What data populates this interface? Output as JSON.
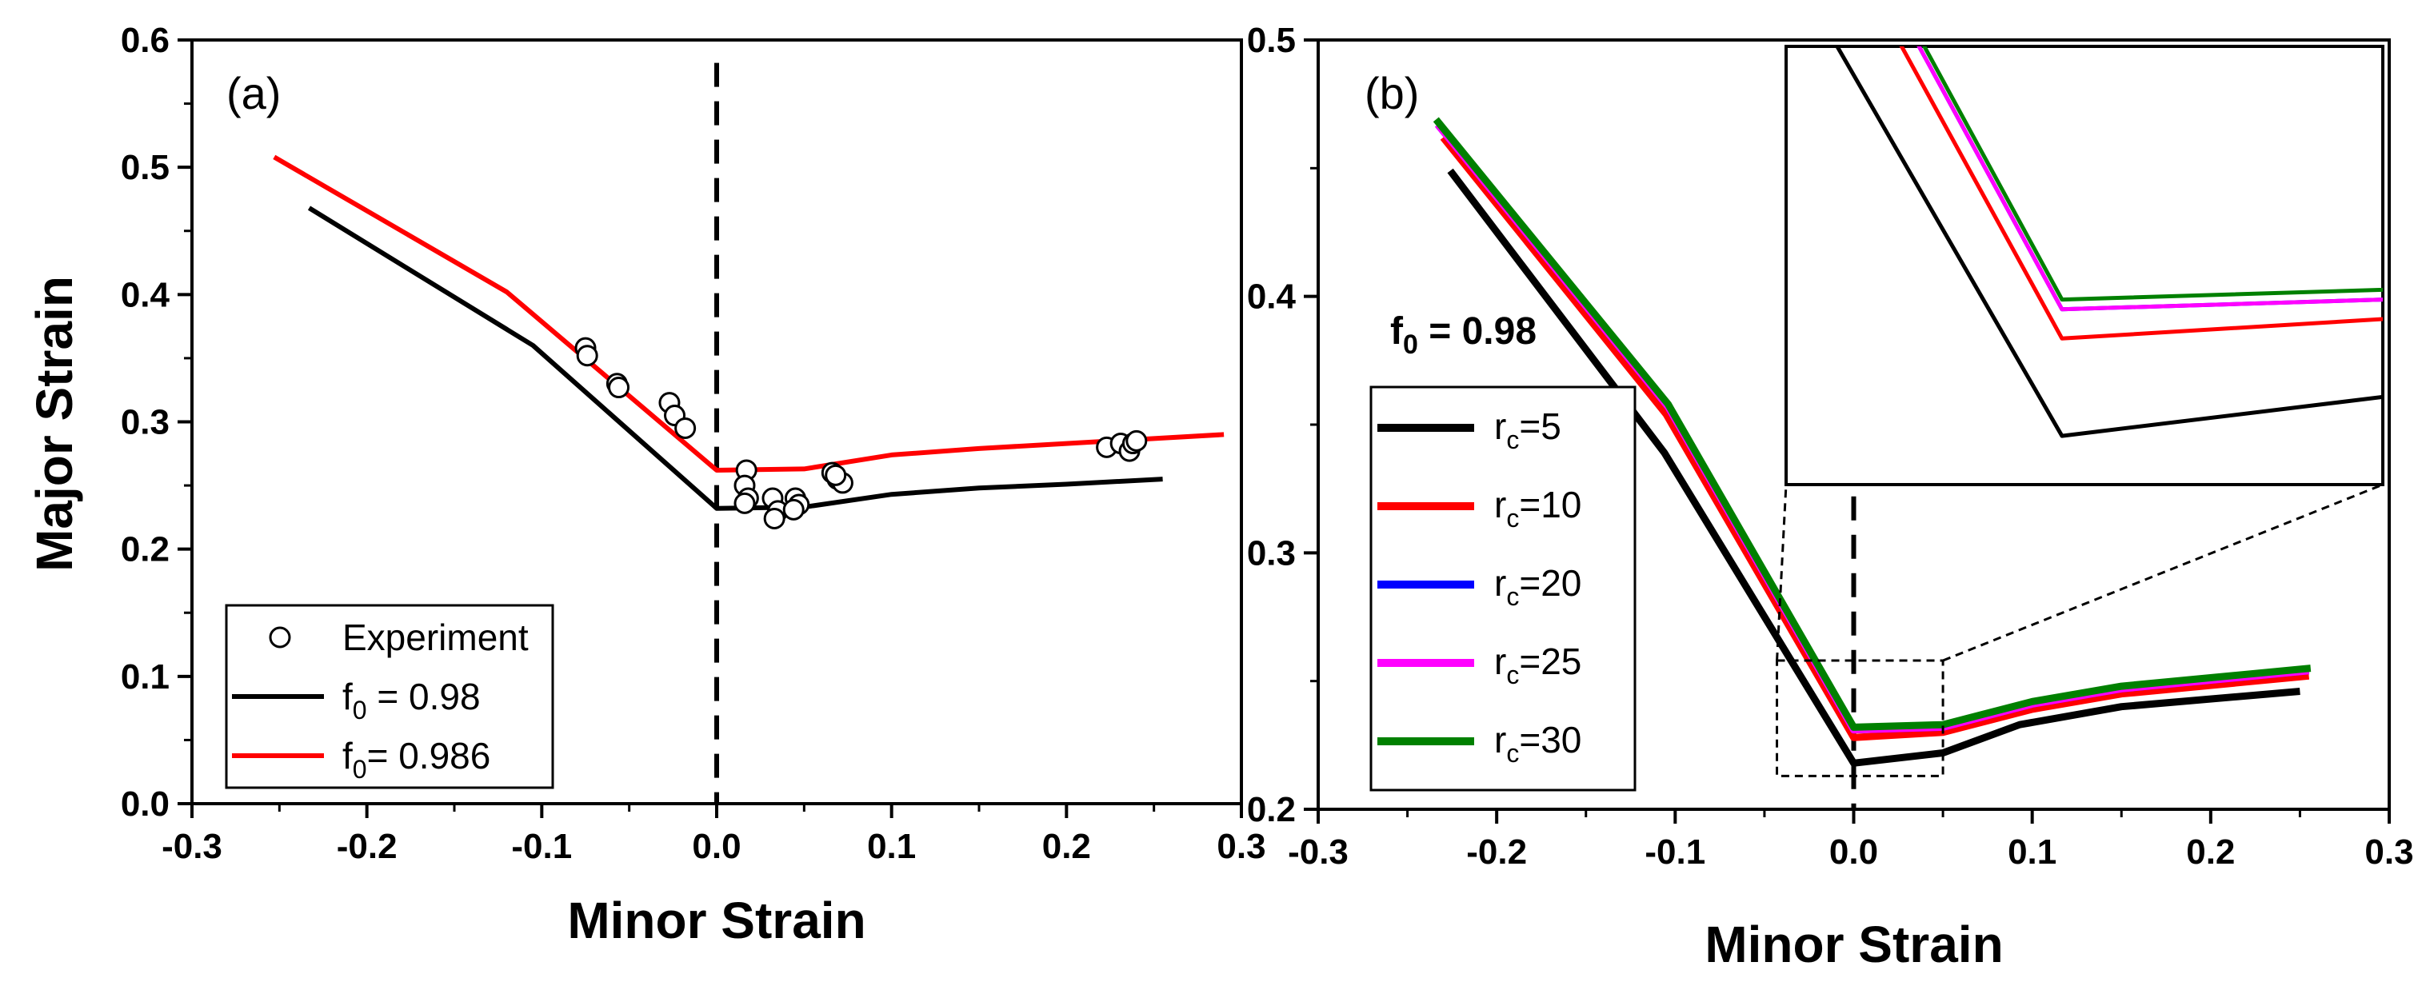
{
  "chart_data": [
    {
      "type": "line",
      "panel_label": "(a)",
      "xlabel": "Minor Strain",
      "ylabel": "Major Strain",
      "xlim": [
        -0.3,
        0.3
      ],
      "ylim": [
        0.0,
        0.6
      ],
      "xtick_labels": [
        "-0.3",
        "-0.2",
        "-0.1",
        "0.0",
        "0.1",
        "0.2",
        "0.3"
      ],
      "ytick_labels": [
        "0.0",
        "0.1",
        "0.2",
        "0.3",
        "0.4",
        "0.5",
        "0.6"
      ],
      "vline": {
        "x": 0.0,
        "style": "dashed",
        "color": "#000000"
      },
      "legend": {
        "position": "bottom-left",
        "entries": [
          {
            "name": "Experiment",
            "marker": "circle",
            "color": "#000000"
          },
          {
            "name": "f",
            "sub": "0",
            "suffix": " = 0.98",
            "color": "#000000"
          },
          {
            "name": "f",
            "sub": "0",
            "suffix": "= 0.986",
            "color": "#ff0000"
          }
        ]
      },
      "series": [
        {
          "name": "f0 = 0.98",
          "color": "#000000",
          "x": [
            -0.233,
            -0.105,
            0.0,
            0.05,
            0.1,
            0.15,
            0.2,
            0.255
          ],
          "y": [
            0.468,
            0.36,
            0.232,
            0.233,
            0.243,
            0.248,
            0.251,
            0.255
          ]
        },
        {
          "name": "f0 = 0.986",
          "color": "#ff0000",
          "x": [
            -0.253,
            -0.12,
            0.0,
            0.05,
            0.1,
            0.15,
            0.2,
            0.29
          ],
          "y": [
            0.508,
            0.402,
            0.262,
            0.263,
            0.274,
            0.279,
            0.283,
            0.29
          ]
        }
      ],
      "experiment": {
        "name": "Experiment",
        "color": "#000000",
        "x": [
          -0.075,
          -0.074,
          -0.057,
          -0.056,
          -0.027,
          -0.024,
          -0.018,
          0.017,
          0.016,
          0.018,
          0.016,
          0.032,
          0.035,
          0.033,
          0.045,
          0.047,
          0.044,
          0.066,
          0.069,
          0.072,
          0.068,
          0.223,
          0.231,
          0.236,
          0.238,
          0.24
        ],
        "y": [
          0.358,
          0.352,
          0.33,
          0.327,
          0.315,
          0.305,
          0.295,
          0.262,
          0.25,
          0.24,
          0.236,
          0.24,
          0.23,
          0.224,
          0.24,
          0.235,
          0.231,
          0.26,
          0.255,
          0.252,
          0.258,
          0.28,
          0.283,
          0.277,
          0.283,
          0.285
        ]
      }
    },
    {
      "type": "line",
      "panel_label": "(b)",
      "xlabel": "Minor Strain",
      "ylabel": "",
      "xlim": [
        -0.3,
        0.3
      ],
      "ylim": [
        0.2,
        0.5
      ],
      "xtick_labels": [
        "-0.3",
        "-0.2",
        "-0.1",
        "0.0",
        "0.1",
        "0.2",
        "0.3"
      ],
      "ytick_labels": [
        "0.2",
        "0.3",
        "0.4",
        "0.5"
      ],
      "annotation": {
        "text": "f",
        "sub": "0",
        "suffix": " = 0.98"
      },
      "vline": {
        "x": 0.0,
        "style": "dashed",
        "color": "#000000"
      },
      "legend": {
        "position": "center-left",
        "entries": [
          {
            "name": "r",
            "sub": "c",
            "suffix": "=5",
            "color": "#000000"
          },
          {
            "name": "r",
            "sub": "c",
            "suffix": "=10",
            "color": "#ff0000"
          },
          {
            "name": "r",
            "sub": "c",
            "suffix": "=20",
            "color": "#0000ff"
          },
          {
            "name": "r",
            "sub": "c",
            "suffix": "=25",
            "color": "#ff00ff"
          },
          {
            "name": "r",
            "sub": "c",
            "suffix": "=30",
            "color": "#008000"
          }
        ]
      },
      "series": [
        {
          "name": "rc=5",
          "color": "#000000",
          "x": [
            -0.226,
            -0.106,
            0.0,
            0.05,
            0.093,
            0.15,
            0.25
          ],
          "y": [
            0.449,
            0.339,
            0.218,
            0.222,
            0.233,
            0.24,
            0.246
          ]
        },
        {
          "name": "rc=10",
          "color": "#ff0000",
          "x": [
            -0.23,
            -0.105,
            0.0,
            0.05,
            0.1,
            0.15,
            0.255
          ],
          "y": [
            0.462,
            0.354,
            0.228,
            0.23,
            0.239,
            0.245,
            0.252
          ]
        },
        {
          "name": "rc=20",
          "color": "#0000ff",
          "x": [
            -0.233,
            -0.104,
            0.0,
            0.05,
            0.1,
            0.15,
            0.255
          ],
          "y": [
            0.467,
            0.357,
            0.231,
            0.232,
            0.241,
            0.247,
            0.254
          ]
        },
        {
          "name": "rc=25",
          "color": "#ff00ff",
          "x": [
            -0.233,
            -0.104,
            0.0,
            0.05,
            0.1,
            0.15,
            0.255
          ],
          "y": [
            0.467,
            0.357,
            0.231,
            0.232,
            0.241,
            0.247,
            0.254
          ]
        },
        {
          "name": "rc=30",
          "color": "#008000",
          "x": [
            -0.234,
            -0.104,
            0.0,
            0.05,
            0.1,
            0.15,
            0.256
          ],
          "y": [
            0.469,
            0.358,
            0.232,
            0.233,
            0.242,
            0.248,
            0.255
          ]
        }
      ],
      "zoom_region": {
        "x": [
          -0.043,
          0.05
        ],
        "y": [
          0.213,
          0.258
        ]
      }
    }
  ]
}
